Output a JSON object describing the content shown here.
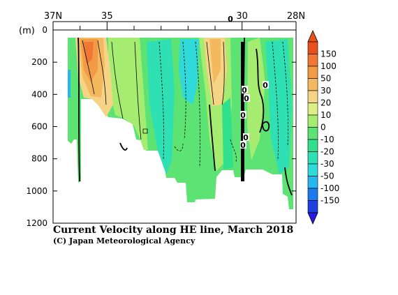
{
  "chart_data": {
    "type": "heatmap",
    "title": "Current Velocity along HE line, March 2018",
    "credit": "(C) Japan Meteorological Agency",
    "y_axis": {
      "unit_label": "(m)",
      "range": [
        0,
        1200
      ],
      "inverted": true,
      "ticks": [
        0,
        200,
        400,
        600,
        800,
        1000,
        1200
      ]
    },
    "x_axis": {
      "position": "top",
      "range": [
        37,
        28
      ],
      "unit": "N",
      "ticks": [
        {
          "value": 37,
          "label": "37N"
        },
        {
          "value": 35,
          "label": "35"
        },
        {
          "value": 30,
          "label": "30"
        },
        {
          "value": 28,
          "label": "28N"
        }
      ],
      "minor_ticks": [
        36,
        34,
        33,
        32,
        31,
        29
      ]
    },
    "colorbar": {
      "levels": [
        150,
        100,
        50,
        30,
        20,
        10,
        0,
        -10,
        -20,
        -30,
        -50,
        -100,
        -150
      ],
      "colors": [
        "#e8511a",
        "#f07832",
        "#f29a45",
        "#f4b85f",
        "#f5d486",
        "#d9ef86",
        "#a6ec70",
        "#5de274",
        "#31e08d",
        "#2ee0b3",
        "#2fdad8",
        "#26b7ef",
        "#1e78ee",
        "#1f3fe0"
      ],
      "lower_extend_color": "#2a1ae0",
      "upper_extend_color": "#e8511a"
    },
    "contour_labels": [
      "0",
      "0",
      "0",
      "0",
      "0",
      "0",
      "0",
      "0"
    ],
    "depth_profile": [
      {
        "lat": 36.55,
        "max_depth": 690
      },
      {
        "lat": 36.2,
        "max_depth": 940
      },
      {
        "lat": 35.6,
        "max_depth": 420
      },
      {
        "lat": 35.0,
        "max_depth": 560
      },
      {
        "lat": 34.5,
        "max_depth": 690
      },
      {
        "lat": 34.0,
        "max_depth": 760
      },
      {
        "lat": 33.5,
        "max_depth": 880
      },
      {
        "lat": 33.1,
        "max_depth": 1070
      },
      {
        "lat": 32.4,
        "max_depth": 1020
      },
      {
        "lat": 31.8,
        "max_depth": 870
      },
      {
        "lat": 31.2,
        "max_depth": 830
      },
      {
        "lat": 30.5,
        "max_depth": 880
      },
      {
        "lat": 29.9,
        "max_depth": 940
      },
      {
        "lat": 29.3,
        "max_depth": 860
      },
      {
        "lat": 28.6,
        "max_depth": 1010
      },
      {
        "lat": 28.1,
        "max_depth": 1130
      }
    ]
  }
}
